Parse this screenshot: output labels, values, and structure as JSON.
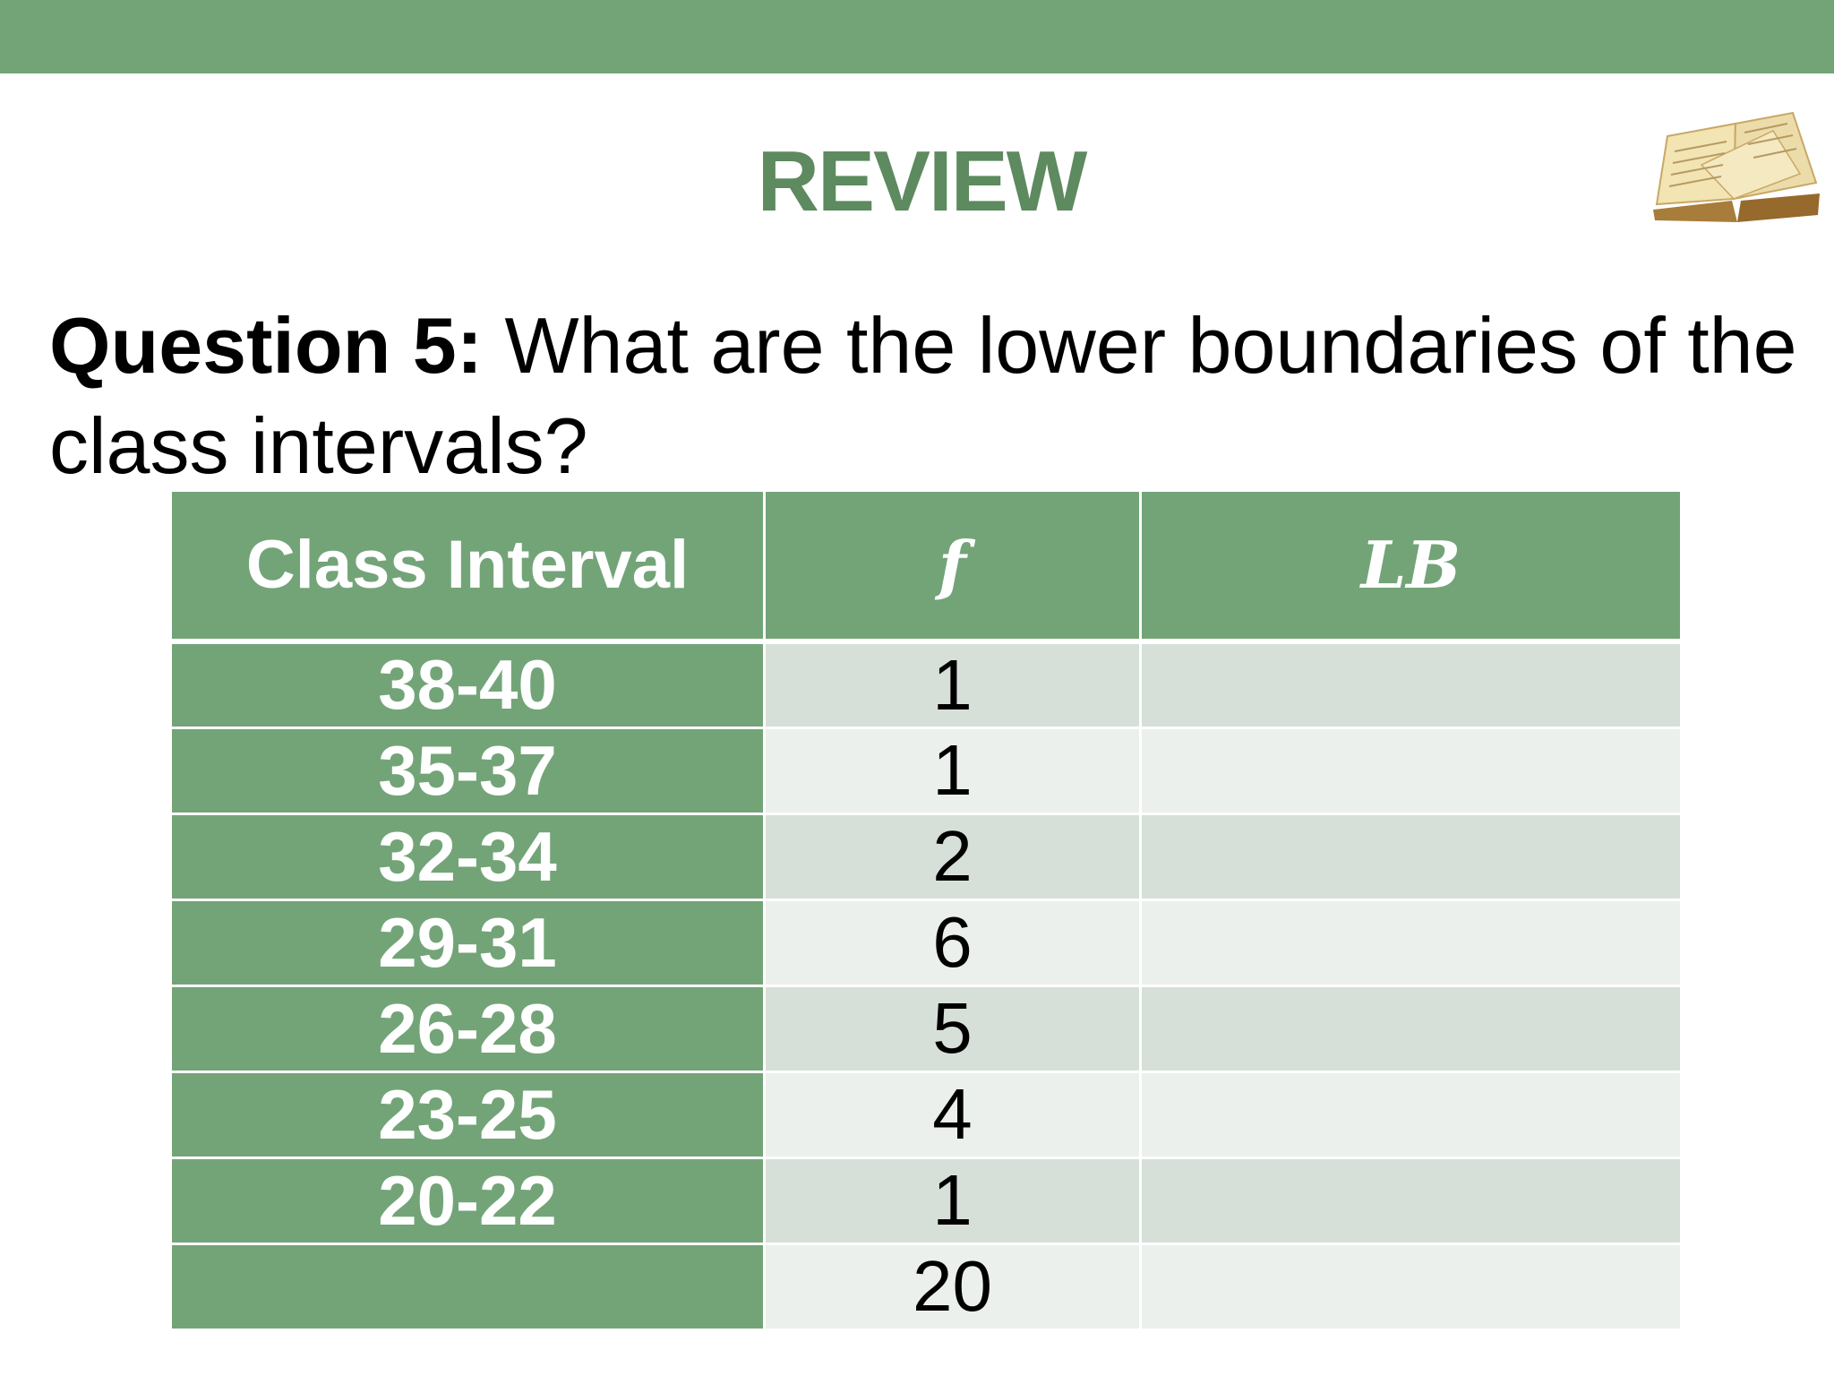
{
  "slide": {
    "title": "REVIEW",
    "question_label": "Question 5:",
    "question_text": " What are the lower boundaries of the class intervals?",
    "icon": "open-book-icon",
    "colors": {
      "accent_green": "#73a478",
      "title_green": "#5d8a5f",
      "row_light": "#d7e0d8",
      "row_lighter": "#ecf0ec"
    }
  },
  "table": {
    "headers": [
      "Class Interval",
      "f",
      "LB"
    ],
    "rows": [
      {
        "interval": "38-40",
        "f": "1",
        "lb": ""
      },
      {
        "interval": "35-37",
        "f": "1",
        "lb": ""
      },
      {
        "interval": "32-34",
        "f": "2",
        "lb": ""
      },
      {
        "interval": "29-31",
        "f": "6",
        "lb": ""
      },
      {
        "interval": "26-28",
        "f": "5",
        "lb": ""
      },
      {
        "interval": "23-25",
        "f": "4",
        "lb": ""
      },
      {
        "interval": "20-22",
        "f": "1",
        "lb": ""
      },
      {
        "interval": "",
        "f": "20",
        "lb": ""
      }
    ]
  }
}
